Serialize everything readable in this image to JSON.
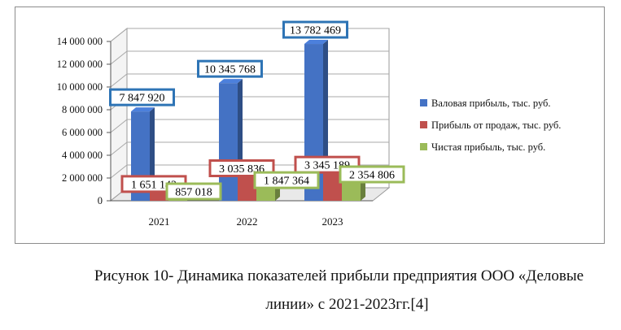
{
  "chart_data": {
    "type": "bar",
    "three_d": true,
    "categories": [
      "2021",
      "2022",
      "2023"
    ],
    "series": [
      {
        "name": "Валовая прибыль, тыс. руб.",
        "color": "#4472c4",
        "label_border": "#2e74b5",
        "values": [
          7847920,
          10345768,
          13782469
        ],
        "labels": [
          "7 847 920",
          "10 345 768",
          "13 782 469"
        ]
      },
      {
        "name": "Прибыль от продаж, тыс. руб.",
        "color": "#c0504d",
        "label_border": "#c0504d",
        "values": [
          1651142,
          3035836,
          3345189
        ],
        "labels": [
          "1 651 142",
          "3 035 836",
          "3 345 189"
        ]
      },
      {
        "name": "Чистая прибыль, тыс. руб.",
        "color": "#9bbb59",
        "label_border": "#9bbb59",
        "values": [
          857018,
          1847364,
          2354806
        ],
        "labels": [
          "857 018",
          "1 847 364",
          "2 354 806"
        ]
      }
    ],
    "yticks": [
      "0",
      "2 000 000",
      "4 000 000",
      "6 000 000",
      "8 000 000",
      "10 000 000",
      "12 000 000",
      "14 000 000"
    ],
    "ylim": [
      0,
      14000000
    ],
    "grid": true,
    "legend_position": "right"
  },
  "caption": {
    "line1": "Рисунок 10- Динамика показателей прибыли предприятия ООО «Деловые",
    "line2": "линии» с 2021-2023гг.[4]"
  }
}
